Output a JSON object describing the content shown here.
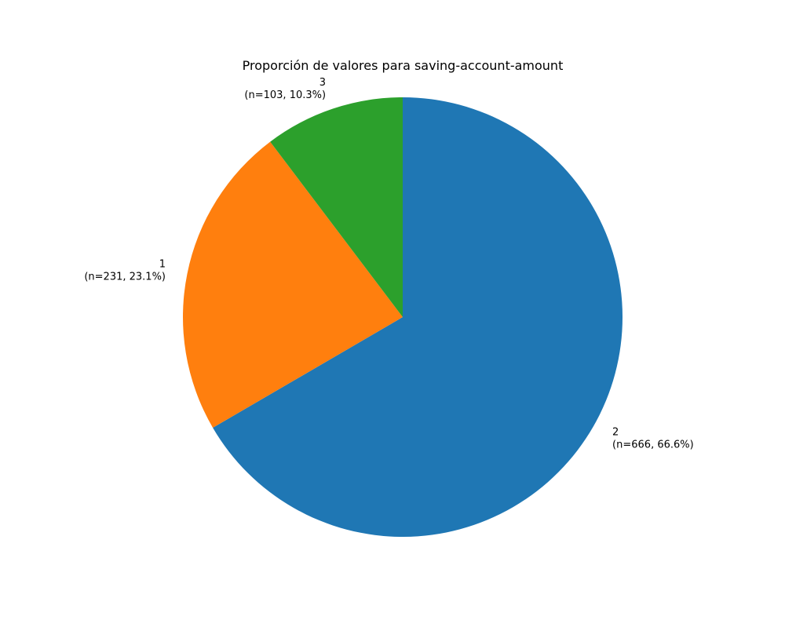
{
  "chart_data": {
    "type": "pie",
    "title": "Proporción de valores para saving-account-amount",
    "start_angle_deg": 90,
    "direction": "clockwise",
    "slices": [
      {
        "category": "2",
        "count": 666,
        "percent": "66.6%",
        "color": "#1f77b4"
      },
      {
        "category": "1",
        "count": 231,
        "percent": "23.1%",
        "color": "#ff7f0e"
      },
      {
        "category": "3",
        "count": 103,
        "percent": "10.3%",
        "color": "#2ca02c"
      }
    ]
  }
}
